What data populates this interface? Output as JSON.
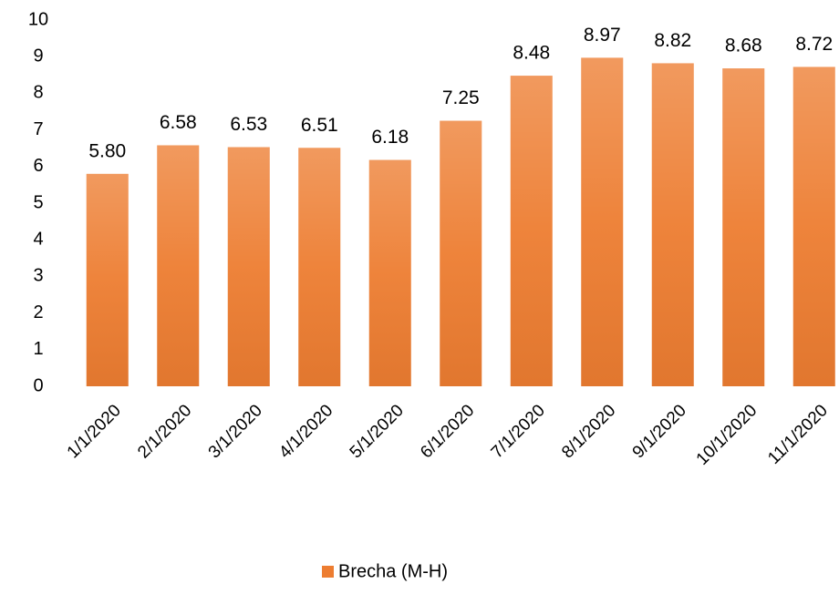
{
  "chart_data": {
    "type": "bar",
    "categories": [
      "1/1/2020",
      "2/1/2020",
      "3/1/2020",
      "4/1/2020",
      "5/1/2020",
      "6/1/2020",
      "7/1/2020",
      "8/1/2020",
      "9/1/2020",
      "10/1/2020",
      "11/1/2020"
    ],
    "series": [
      {
        "name": "Brecha (M-H)",
        "color": "#ed7d31",
        "values": [
          5.8,
          6.58,
          6.53,
          6.51,
          6.18,
          7.25,
          8.48,
          8.97,
          8.82,
          8.68,
          8.72
        ],
        "value_labels": [
          "5.80",
          "6.58",
          "6.53",
          "6.51",
          "6.18",
          "7.25",
          "8.48",
          "8.97",
          "8.82",
          "8.68",
          "8.72"
        ]
      }
    ],
    "ylim": [
      0,
      10
    ],
    "yticks": [
      0,
      1,
      2,
      3,
      4,
      5,
      6,
      7,
      8,
      9,
      10
    ],
    "grid": false,
    "legend": "bottom"
  }
}
